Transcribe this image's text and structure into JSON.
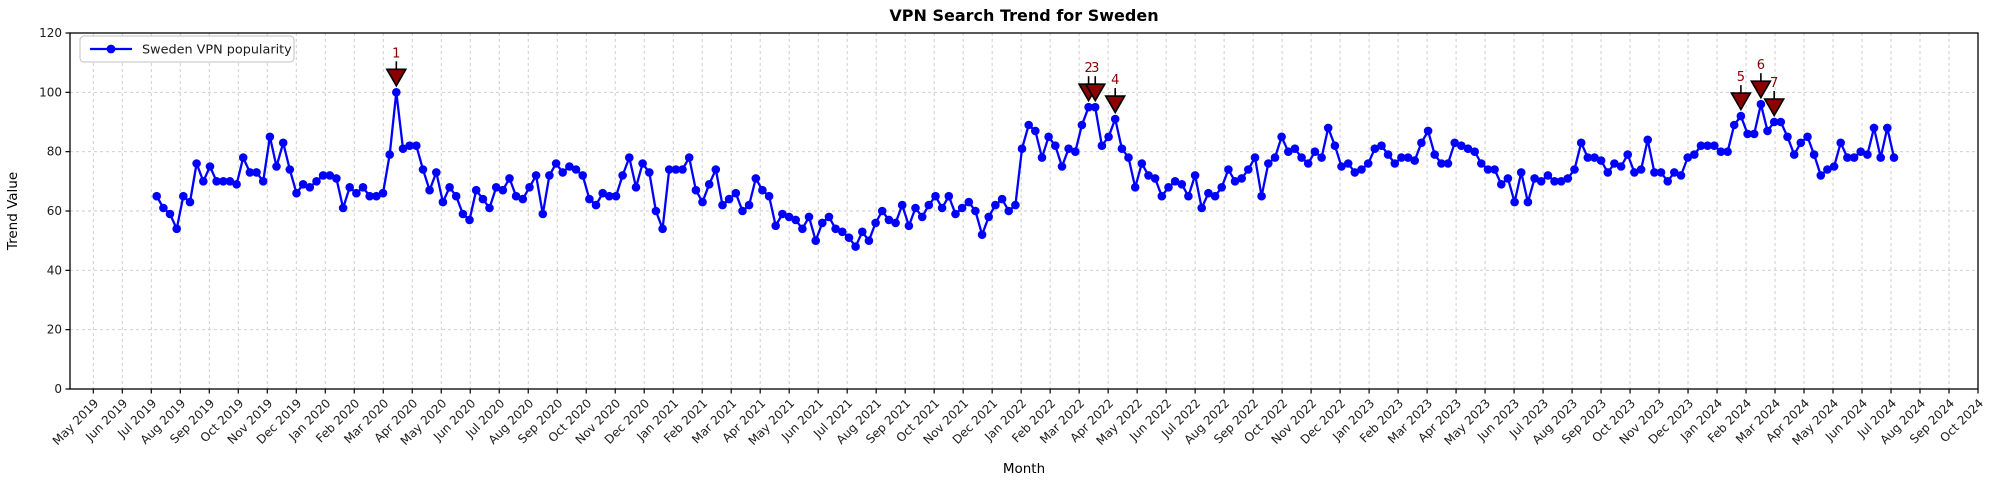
{
  "chart_data": {
    "type": "line",
    "title": "VPN Search Trend for Sweden",
    "xlabel": "Month",
    "ylabel": "Trend Value",
    "legend_label": "Sweden VPN popularity",
    "legend_position": "upper left",
    "grid": true,
    "ylim": [
      0,
      120
    ],
    "yticks": [
      0,
      20,
      40,
      60,
      80,
      100,
      120
    ],
    "x_tick_labels": [
      "May 2019",
      "Jun 2019",
      "Jul 2019",
      "Aug 2019",
      "Sep 2019",
      "Oct 2019",
      "Nov 2019",
      "Dec 2019",
      "Jan 2020",
      "Feb 2020",
      "Mar 2020",
      "Apr 2020",
      "May 2020",
      "Jun 2020",
      "Jul 2020",
      "Aug 2020",
      "Sep 2020",
      "Oct 2020",
      "Nov 2020",
      "Dec 2020",
      "Jan 2021",
      "Feb 2021",
      "Mar 2021",
      "Apr 2021",
      "May 2021",
      "Jun 2021",
      "Jul 2021",
      "Aug 2021",
      "Sep 2021",
      "Oct 2021",
      "Nov 2021",
      "Dec 2021",
      "Jan 2022",
      "Feb 2022",
      "Mar 2022",
      "Apr 2022",
      "May 2022",
      "Jun 2022",
      "Jul 2022",
      "Aug 2022",
      "Sep 2022",
      "Oct 2022",
      "Nov 2022",
      "Dec 2022",
      "Jan 2023",
      "Feb 2023",
      "Mar 2023",
      "Apr 2023",
      "May 2023",
      "Jun 2023",
      "Jul 2023",
      "Aug 2023",
      "Sep 2023",
      "Oct 2023",
      "Nov 2023",
      "Dec 2023",
      "Jan 2024",
      "Feb 2024",
      "Mar 2024",
      "Apr 2024",
      "May 2024",
      "Jun 2024",
      "Jul 2024",
      "Aug 2024",
      "Sep 2024",
      "Oct 2024"
    ],
    "x_unit": "weekly samples",
    "x_range": [
      "Jul 2019",
      "Jul 2024"
    ],
    "series": [
      {
        "name": "Sweden VPN popularity",
        "color": "#0000ff",
        "values": [
          65,
          61,
          59,
          54,
          65,
          63,
          76,
          70,
          75,
          70,
          70,
          70,
          69,
          78,
          73,
          73,
          70,
          85,
          75,
          83,
          74,
          66,
          69,
          68,
          70,
          72,
          72,
          71,
          61,
          68,
          66,
          68,
          65,
          65,
          66,
          79,
          100,
          81,
          82,
          82,
          74,
          67,
          73,
          63,
          68,
          65,
          59,
          57,
          67,
          64,
          61,
          68,
          67,
          71,
          65,
          64,
          68,
          72,
          59,
          72,
          76,
          73,
          75,
          74,
          72,
          64,
          62,
          66,
          65,
          65,
          72,
          78,
          68,
          76,
          73,
          60,
          54,
          74,
          74,
          74,
          78,
          67,
          63,
          69,
          74,
          62,
          64,
          66,
          60,
          62,
          71,
          67,
          65,
          55,
          59,
          58,
          57,
          54,
          58,
          50,
          56,
          58,
          54,
          53,
          51,
          48,
          53,
          50,
          56,
          60,
          57,
          56,
          62,
          55,
          61,
          58,
          62,
          65,
          61,
          65,
          59,
          61,
          63,
          60,
          52,
          58,
          62,
          64,
          60,
          62,
          81,
          89,
          87,
          78,
          85,
          82,
          75,
          81,
          80,
          89,
          95,
          95,
          82,
          85,
          91,
          81,
          78,
          68,
          76,
          72,
          71,
          65,
          68,
          70,
          69,
          65,
          72,
          61,
          66,
          65,
          68,
          74,
          70,
          71,
          74,
          78,
          65,
          76,
          78,
          85,
          80,
          81,
          78,
          76,
          80,
          78,
          88,
          82,
          75,
          76,
          73,
          74,
          76,
          81,
          82,
          79,
          76,
          78,
          78,
          77,
          83,
          87,
          79,
          76,
          76,
          83,
          82,
          81,
          80,
          76,
          74,
          74,
          69,
          71,
          63,
          73,
          63,
          71,
          70,
          72,
          70,
          70,
          71,
          74,
          83,
          78,
          78,
          77,
          73,
          76,
          75,
          79,
          73,
          74,
          84,
          73,
          73,
          70,
          73,
          72,
          78,
          79,
          82,
          82,
          82,
          80,
          80,
          89,
          92,
          86,
          86,
          96,
          87,
          90,
          90,
          85,
          79,
          83,
          85,
          79,
          72,
          74,
          75,
          83,
          78,
          78,
          80,
          79,
          88,
          78,
          88,
          78
        ]
      }
    ],
    "annotations": [
      {
        "label": "1",
        "index": 36,
        "value": 100
      },
      {
        "label": "2",
        "index": 140,
        "value": 95
      },
      {
        "label": "3",
        "index": 141,
        "value": 95
      },
      {
        "label": "4",
        "index": 144,
        "value": 91
      },
      {
        "label": "5",
        "index": 238,
        "value": 92
      },
      {
        "label": "6",
        "index": 241,
        "value": 96
      },
      {
        "label": "7",
        "index": 243,
        "value": 90
      }
    ],
    "colors": {
      "line": "#0000ff",
      "marker": "#0000ff",
      "annotation_fill": "#8b0000",
      "annotation_text": "#8b0000",
      "annotation_edge": "#000000",
      "grid": "#c9c9c9",
      "spine": "#000000",
      "text": "#1a1a1a"
    }
  }
}
